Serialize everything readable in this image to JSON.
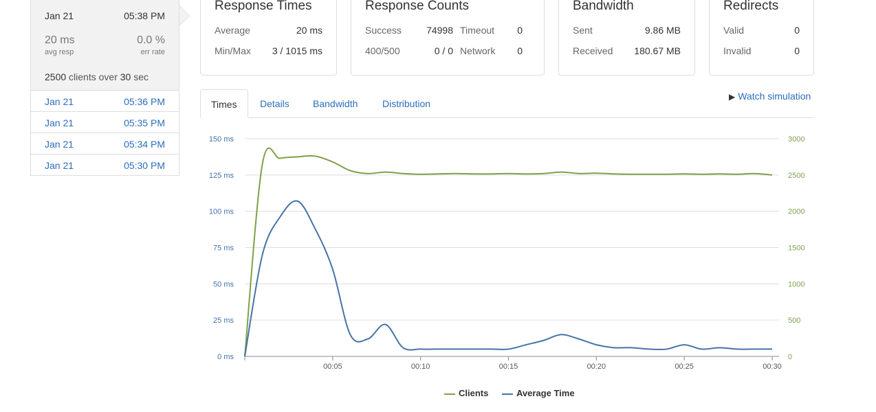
{
  "sidebar": {
    "active": {
      "date": "Jan 21",
      "time": "05:38 PM",
      "avg_resp_value": "20 ms",
      "avg_resp_label": "avg resp",
      "err_rate_value": "0.0 %",
      "err_rate_label": "err rate",
      "clients": "2500",
      "clients_text": "clients over",
      "duration": "30",
      "duration_unit": "sec"
    },
    "items": [
      {
        "date": "Jan 21",
        "time": "05:36 PM"
      },
      {
        "date": "Jan 21",
        "time": "05:35 PM"
      },
      {
        "date": "Jan 21",
        "time": "05:34 PM"
      },
      {
        "date": "Jan 21",
        "time": "05:30 PM"
      }
    ]
  },
  "response_times": {
    "title": "Response Times",
    "average_label": "Average",
    "average_value": "20 ms",
    "minmax_label": "Min/Max",
    "minmax_value": "3 / 1015 ms"
  },
  "response_counts": {
    "title": "Response Counts",
    "success_label": "Success",
    "success_value": "74998",
    "timeout_label": "Timeout",
    "timeout_value": "0",
    "errors_label": "400/500",
    "errors_value": "0 / 0",
    "network_label": "Network",
    "network_value": "0"
  },
  "bandwidth": {
    "title": "Bandwidth",
    "sent_label": "Sent",
    "sent_value": "9.86 MB",
    "received_label": "Received",
    "received_value": "180.67 MB"
  },
  "redirects": {
    "title": "Redirects",
    "valid_label": "Valid",
    "valid_value": "0",
    "invalid_label": "Invalid",
    "invalid_value": "0"
  },
  "tabs": [
    "Times",
    "Details",
    "Bandwidth",
    "Distribution"
  ],
  "watch_label": "Watch simulation",
  "colors": {
    "clients": "#7fa04a",
    "avg_time": "#4572a7",
    "link": "#2a6ebb"
  },
  "chart_data": {
    "type": "line",
    "x": [
      "00:00",
      "00:01",
      "00:02",
      "00:03",
      "00:04",
      "00:05",
      "00:06",
      "00:07",
      "00:08",
      "00:09",
      "00:10",
      "00:11",
      "00:12",
      "00:13",
      "00:14",
      "00:15",
      "00:16",
      "00:17",
      "00:18",
      "00:19",
      "00:20",
      "00:21",
      "00:22",
      "00:23",
      "00:24",
      "00:25",
      "00:26",
      "00:27",
      "00:28",
      "00:29",
      "00:30"
    ],
    "x_tick_labels": [
      "00:05",
      "00:10",
      "00:15",
      "00:20",
      "00:25",
      "00:30"
    ],
    "left_axis": {
      "ticks": [
        "0 ms",
        "25 ms",
        "50 ms",
        "75 ms",
        "100 ms",
        "125 ms",
        "150 ms"
      ],
      "ylim": [
        0,
        150
      ]
    },
    "right_axis": {
      "ticks": [
        "0",
        "500",
        "1000",
        "1500",
        "2000",
        "2500",
        "3000"
      ],
      "ylim": [
        0,
        3000
      ]
    },
    "series": [
      {
        "name": "Clients",
        "axis": "right",
        "values": [
          0,
          2650,
          2730,
          2750,
          2760,
          2680,
          2560,
          2520,
          2540,
          2520,
          2510,
          2515,
          2520,
          2515,
          2515,
          2520,
          2515,
          2520,
          2540,
          2520,
          2525,
          2515,
          2510,
          2510,
          2510,
          2515,
          2510,
          2515,
          2510,
          2520,
          2500
        ]
      },
      {
        "name": "Average Time",
        "axis": "left",
        "values": [
          0,
          70,
          96,
          107,
          88,
          60,
          15,
          12,
          22,
          6,
          5,
          5,
          5,
          5,
          5,
          5,
          8,
          11,
          15,
          12,
          8,
          6,
          6,
          5,
          5,
          8,
          5,
          6,
          5,
          5,
          5
        ]
      }
    ],
    "legend_position": "bottom-center",
    "grid": true
  }
}
